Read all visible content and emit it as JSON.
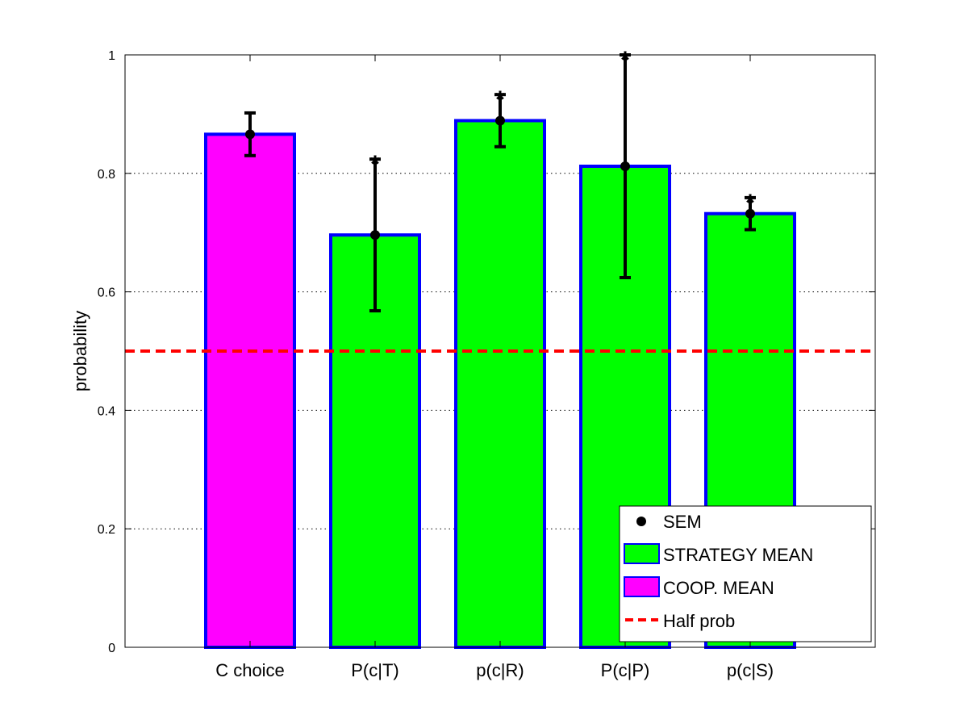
{
  "chart_data": {
    "type": "bar",
    "categories": [
      "C choice",
      "P(c|T)",
      "p(c|R)",
      "P(c|P)",
      "p(c|S)"
    ],
    "values": [
      0.866,
      0.696,
      0.889,
      0.812,
      0.732
    ],
    "sem": [
      0.036,
      0.128,
      0.044,
      0.188,
      0.027
    ],
    "bar_series": [
      "COOP. MEAN",
      "STRATEGY MEAN",
      "STRATEGY MEAN",
      "STRATEGY MEAN",
      "STRATEGY MEAN"
    ],
    "significance": [
      "",
      "*",
      "*",
      "*",
      "*"
    ],
    "reference_line": {
      "name": "Half prob",
      "value": 0.5,
      "color": "#ff0000",
      "style": "dashed"
    },
    "ylabel": "probability",
    "xlabel": "",
    "ylim": [
      0,
      1
    ],
    "yticks": [
      "0",
      "0.2",
      "0.4",
      "0.6",
      "0.8",
      "1"
    ],
    "ytick_values": [
      0,
      0.2,
      0.4,
      0.6,
      0.8,
      1
    ],
    "grid": "y-dotted",
    "legend": {
      "placement": "bottom-right",
      "entries": [
        {
          "label": "SEM",
          "kind": "marker",
          "color": "#000000"
        },
        {
          "label": "STRATEGY MEAN",
          "kind": "patch",
          "color": "#00ff00"
        },
        {
          "label": "COOP. MEAN",
          "kind": "patch",
          "color": "#ff00ff"
        },
        {
          "label": "Half prob",
          "kind": "dashed-line",
          "color": "#ff0000"
        }
      ]
    },
    "colors": {
      "COOP. MEAN": "#ff00ff",
      "STRATEGY MEAN": "#00ff00",
      "bar_edge": "#0000ff",
      "error_bar": "#000000"
    }
  }
}
